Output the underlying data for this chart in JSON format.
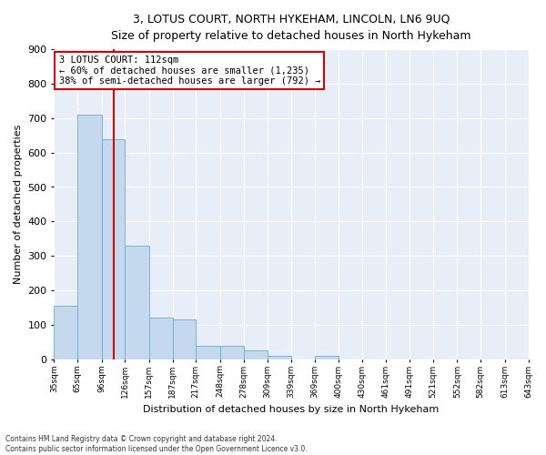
{
  "title": "3, LOTUS COURT, NORTH HYKEHAM, LINCOLN, LN6 9UQ",
  "subtitle": "Size of property relative to detached houses in North Hykeham",
  "xlabel": "Distribution of detached houses by size in North Hykeham",
  "ylabel": "Number of detached properties",
  "footnote1": "Contains HM Land Registry data © Crown copyright and database right 2024.",
  "footnote2": "Contains public sector information licensed under the Open Government Licence v3.0.",
  "annotation_line1": "3 LOTUS COURT: 112sqm",
  "annotation_line2": "← 60% of detached houses are smaller (1,235)",
  "annotation_line3": "38% of semi-detached houses are larger (792) →",
  "property_size": 112,
  "bar_color": "#c5d9ee",
  "bar_edge_color": "#6aaad4",
  "vline_color": "#cc0000",
  "background_color": "#e8eef8",
  "bins": [
    35,
    65,
    96,
    126,
    157,
    187,
    217,
    248,
    278,
    309,
    339,
    369,
    400,
    430,
    461,
    491,
    521,
    552,
    582,
    613,
    643
  ],
  "bin_labels": [
    "35sqm",
    "65sqm",
    "96sqm",
    "126sqm",
    "157sqm",
    "187sqm",
    "217sqm",
    "248sqm",
    "278sqm",
    "309sqm",
    "339sqm",
    "369sqm",
    "400sqm",
    "430sqm",
    "461sqm",
    "491sqm",
    "521sqm",
    "552sqm",
    "582sqm",
    "613sqm",
    "643sqm"
  ],
  "counts": [
    155,
    710,
    640,
    330,
    120,
    115,
    40,
    40,
    25,
    10,
    0,
    10,
    0,
    0,
    0,
    0,
    0,
    0,
    0,
    0
  ],
  "ylim": [
    0,
    900
  ],
  "yticks": [
    0,
    100,
    200,
    300,
    400,
    500,
    600,
    700,
    800,
    900
  ]
}
